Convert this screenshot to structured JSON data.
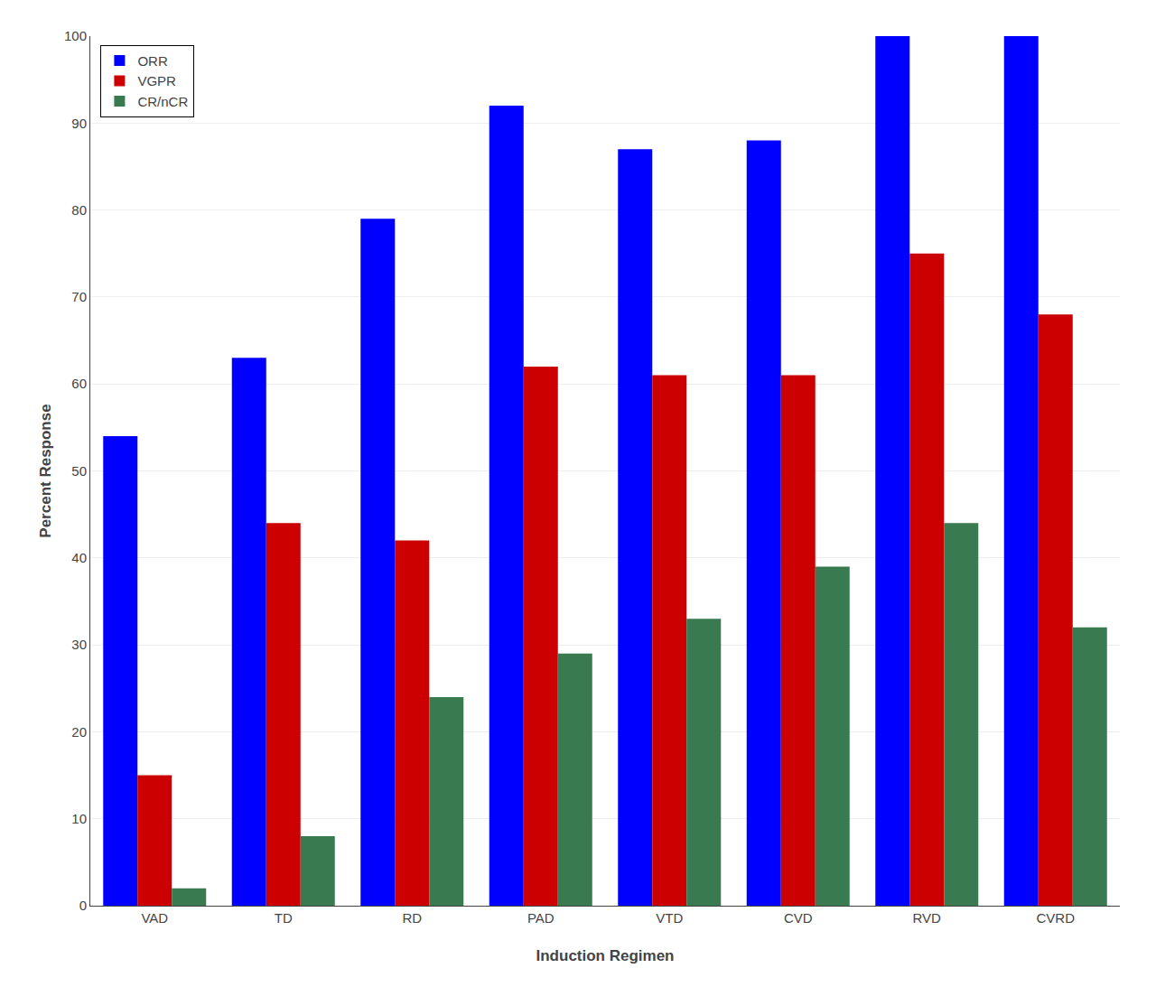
{
  "chart_data": {
    "type": "bar",
    "categories": [
      "VAD",
      "TD",
      "RD",
      "PAD",
      "VTD",
      "CVD",
      "RVD",
      "CVRD"
    ],
    "series": [
      {
        "name": "ORR",
        "color": "#0000FF",
        "values": [
          54,
          63,
          79,
          92,
          87,
          88,
          100,
          100
        ]
      },
      {
        "name": "VGPR",
        "color": "#CC0000",
        "values": [
          15,
          44,
          42,
          62,
          61,
          61,
          75,
          68
        ]
      },
      {
        "name": "CR/nCR",
        "color": "#3A7A50",
        "values": [
          2,
          8,
          24,
          29,
          33,
          39,
          44,
          32
        ]
      }
    ],
    "xlabel": "Induction Regimen",
    "ylabel": "Percent Response",
    "ylim": [
      0,
      100
    ],
    "yticks": [
      0,
      10,
      20,
      30,
      40,
      50,
      60,
      70,
      80,
      90,
      100
    ],
    "grid": true,
    "legend": "upper left"
  }
}
